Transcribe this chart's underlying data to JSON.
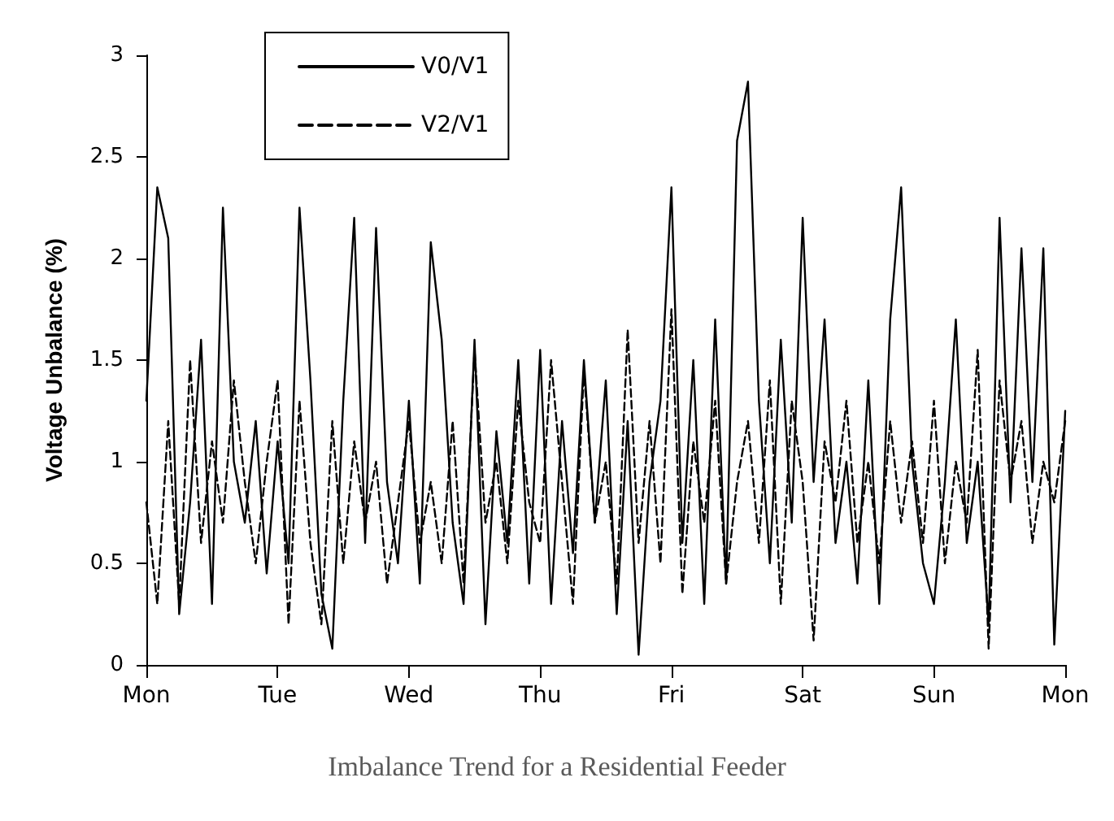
{
  "chart_data": {
    "type": "line",
    "title": "Imbalance Trend for a Residential Feeder",
    "ylabel": "Voltage Unbalance (%)",
    "categories": [
      "Mon",
      null,
      null,
      null,
      null,
      null,
      null,
      null,
      null,
      null,
      null,
      null,
      "Tue",
      null,
      null,
      null,
      null,
      null,
      null,
      null,
      null,
      null,
      null,
      null,
      "Wed",
      null,
      null,
      null,
      null,
      null,
      null,
      null,
      null,
      null,
      null,
      null,
      "Thu",
      null,
      null,
      null,
      null,
      null,
      null,
      null,
      null,
      null,
      null,
      null,
      "Fri",
      null,
      null,
      null,
      null,
      null,
      null,
      null,
      null,
      null,
      null,
      null,
      "Sat",
      null,
      null,
      null,
      null,
      null,
      null,
      null,
      null,
      null,
      null,
      null,
      "Sun",
      null,
      null,
      null,
      null,
      null,
      null,
      null,
      null,
      null,
      null,
      null,
      "Mon"
    ],
    "ylim": [
      0,
      3
    ],
    "yticks": [
      0,
      0.5,
      1,
      1.5,
      2,
      2.5,
      3
    ],
    "grid": false,
    "legend": "top left",
    "marker": "none",
    "series": [
      {
        "name": "V0/V1",
        "color": "#000000",
        "line_style": "solid",
        "values": [
          1.3,
          2.35,
          2.1,
          0.25,
          0.8,
          1.6,
          0.3,
          2.25,
          1.0,
          0.7,
          1.2,
          0.45,
          1.1,
          0.5,
          2.25,
          1.4,
          0.35,
          0.08,
          1.3,
          2.2,
          0.6,
          2.15,
          0.9,
          0.5,
          1.3,
          0.4,
          2.08,
          1.6,
          0.7,
          0.3,
          1.6,
          0.2,
          1.15,
          0.6,
          1.5,
          0.4,
          1.55,
          0.3,
          1.2,
          0.55,
          1.5,
          0.7,
          1.4,
          0.25,
          1.2,
          0.05,
          0.9,
          1.3,
          2.35,
          0.6,
          1.5,
          0.3,
          1.7,
          0.4,
          2.58,
          2.87,
          1.3,
          0.5,
          1.6,
          0.7,
          2.2,
          0.9,
          1.7,
          0.6,
          1.0,
          0.4,
          1.4,
          0.3,
          1.7,
          2.35,
          1.0,
          0.5,
          0.3,
          0.9,
          1.7,
          0.6,
          1.0,
          0.2,
          2.2,
          0.8,
          2.05,
          0.9,
          2.05,
          0.1,
          1.25
        ]
      },
      {
        "name": "V2/V1",
        "color": "#000000",
        "line_style": "dashed",
        "values": [
          0.8,
          0.3,
          1.2,
          0.3,
          1.5,
          0.6,
          1.1,
          0.7,
          1.4,
          0.9,
          0.5,
          1.0,
          1.4,
          0.2,
          1.3,
          0.6,
          0.2,
          1.2,
          0.5,
          1.1,
          0.7,
          1.0,
          0.4,
          0.8,
          1.2,
          0.6,
          0.9,
          0.5,
          1.2,
          0.4,
          1.55,
          0.7,
          1.0,
          0.5,
          1.3,
          0.8,
          0.6,
          1.5,
          0.9,
          0.3,
          1.45,
          0.7,
          1.0,
          0.4,
          1.65,
          0.6,
          1.2,
          0.5,
          1.75,
          0.35,
          1.1,
          0.7,
          1.3,
          0.4,
          0.9,
          1.2,
          0.6,
          1.4,
          0.3,
          1.3,
          0.9,
          0.12,
          1.1,
          0.8,
          1.3,
          0.6,
          1.0,
          0.5,
          1.2,
          0.7,
          1.1,
          0.6,
          1.3,
          0.5,
          1.0,
          0.7,
          1.55,
          0.08,
          1.4,
          0.9,
          1.2,
          0.6,
          1.0,
          0.8,
          1.2
        ]
      }
    ]
  }
}
